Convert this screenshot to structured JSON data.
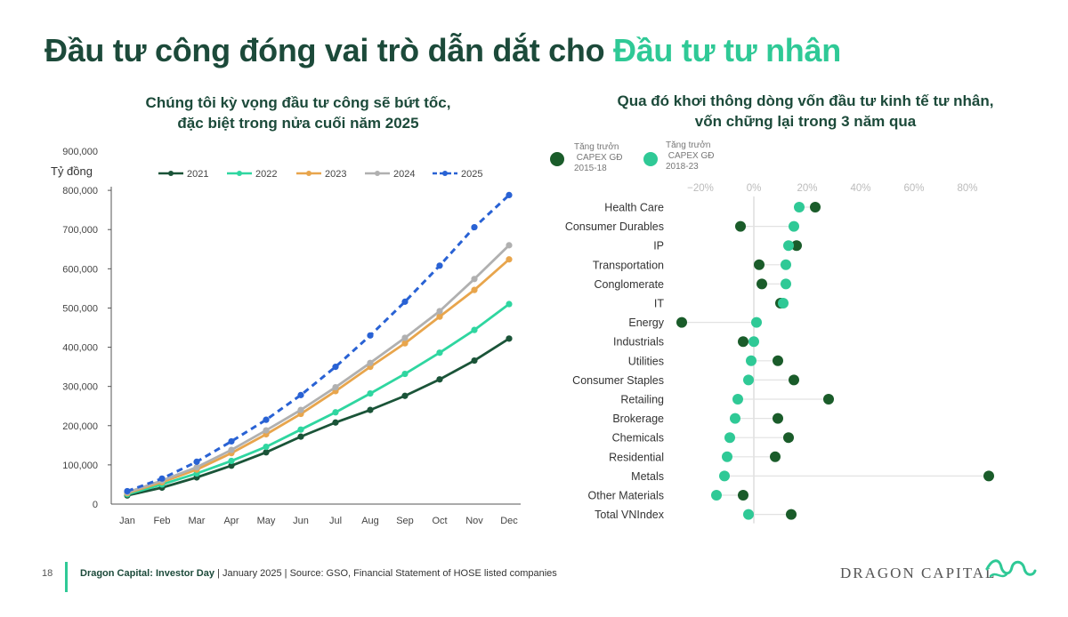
{
  "header": {
    "title_main": "Đầu tư công đóng vai trò dẫn dắt cho",
    "title_accent": "Đầu tư tư nhân",
    "accent_color": "#2fc996",
    "title_color": "#1c4a3a"
  },
  "left_panel": {
    "subtitle_line1": "Chúng tôi kỳ vọng đầu tư công sẽ bứt tốc,",
    "subtitle_line2": "đặc biệt trong nửa cuối năm 2025"
  },
  "right_panel": {
    "subtitle_line1": "Qua đó khơi thông dòng vốn đầu tư kinh tế tư nhân,",
    "subtitle_line2": "vốn chững lại trong 3 năm qua"
  },
  "chart_data": [
    {
      "type": "line",
      "title": "",
      "ylabel": "Tỷ đồng",
      "xlabel": "",
      "ylim": [
        0,
        900000
      ],
      "yticks": [
        0,
        100000,
        200000,
        300000,
        400000,
        500000,
        600000,
        700000,
        800000,
        900000
      ],
      "ytick_labels": [
        "0",
        "100,000",
        "200,000",
        "300,000",
        "400,000",
        "500,000",
        "600,000",
        "700,000",
        "800,000",
        "900,000"
      ],
      "categories": [
        "Jan",
        "Feb",
        "Mar",
        "Apr",
        "May",
        "Jun",
        "Jul",
        "Aug",
        "Sep",
        "Oct",
        "Nov",
        "Dec"
      ],
      "legend_position": "top",
      "grid": false,
      "series": [
        {
          "name": "2021",
          "color": "#1a5438",
          "dashed": false,
          "values": [
            22000,
            42000,
            68000,
            98000,
            132000,
            172000,
            208000,
            240000,
            276000,
            318000,
            366000,
            422000
          ]
        },
        {
          "name": "2022",
          "color": "#2fd6a0",
          "dashed": false,
          "values": [
            25000,
            50000,
            78000,
            110000,
            146000,
            190000,
            234000,
            282000,
            332000,
            386000,
            444000,
            510000
          ]
        },
        {
          "name": "2023",
          "color": "#e8a54c",
          "dashed": false,
          "values": [
            28000,
            56000,
            88000,
            130000,
            178000,
            230000,
            288000,
            350000,
            410000,
            478000,
            546000,
            624000
          ]
        },
        {
          "name": "2024",
          "color": "#b0b0b0",
          "dashed": false,
          "values": [
            30000,
            60000,
            94000,
            138000,
            188000,
            240000,
            298000,
            360000,
            424000,
            492000,
            574000,
            660000
          ]
        },
        {
          "name": "2025",
          "color": "#2962d4",
          "dashed": true,
          "values": [
            33000,
            65000,
            108000,
            160000,
            215000,
            278000,
            350000,
            430000,
            516000,
            608000,
            706000,
            788000
          ]
        }
      ]
    },
    {
      "type": "scatter",
      "subtype": "dumbbell",
      "title": "",
      "x_axis_ticks": [
        -20,
        0,
        20,
        40,
        60,
        80
      ],
      "x_axis_tick_labels": [
        "−20%",
        "0%",
        "20%",
        "40%",
        "60%",
        "80%"
      ],
      "xlim": [
        -24,
        82
      ],
      "legend_position": "top-left",
      "series": [
        {
          "name": "Tăng trưởng CAPEX GĐ 2015-18",
          "color": "#1a5c2a"
        },
        {
          "name": "Tăng trưởng CAPEX GĐ 2018-23",
          "color": "#2fc996"
        }
      ],
      "categories": [
        "Health Care",
        "Consumer Durables",
        "IP",
        "Transportation",
        "Conglomerate",
        "IT",
        "Energy",
        "Industrials",
        "Utilities",
        "Consumer Staples",
        "Retailing",
        "Brokerage",
        "Chemicals",
        "Residential",
        "Metals",
        "Other Materials",
        "Total VNIndex"
      ],
      "values_2015_18": [
        23,
        -5,
        16,
        2,
        3,
        10,
        -27,
        -4,
        9,
        15,
        28,
        9,
        13,
        8,
        88,
        -4,
        14
      ],
      "values_2018_23": [
        17,
        15,
        13,
        12,
        12,
        11,
        1,
        0,
        -1,
        -2,
        -6,
        -7,
        -9,
        -10,
        -11,
        -14,
        -2
      ]
    }
  ],
  "footer": {
    "page_number": "18",
    "source_bold": "Dragon Capital: Investor Day",
    "source_rest": " | January 2025 | Source: GSO, Financial Statement of HOSE listed companies",
    "logo_text": "DRAGON CAPITAL"
  }
}
